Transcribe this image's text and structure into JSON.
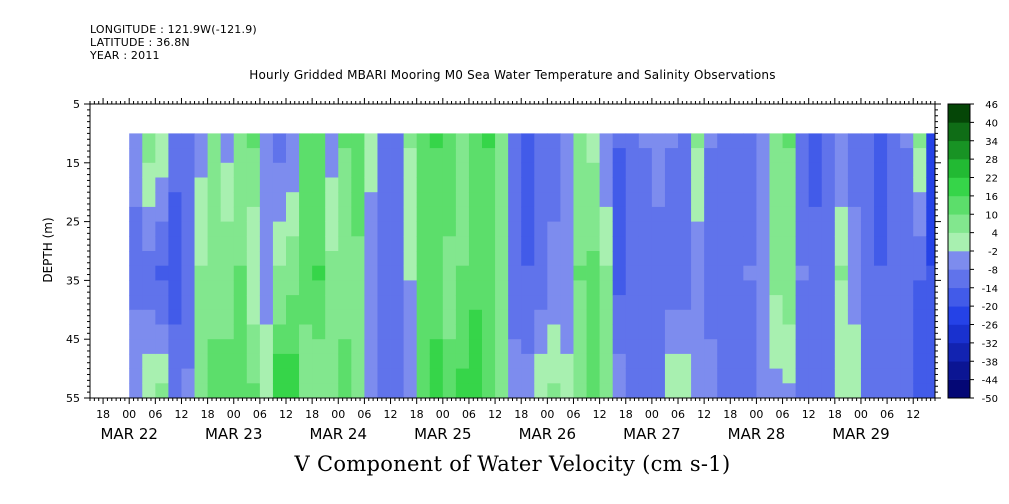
{
  "header": {
    "longitude": "LONGITUDE : 121.9W(-121.9)",
    "latitude": "LATITUDE : 36.8N",
    "year": "YEAR : 2011"
  },
  "chart_data": {
    "type": "heatmap",
    "title": "Hourly Gridded MBARI Mooring M0 Sea Water Temperature and Salinity Observations",
    "xlabel": "V Component of Water Velocity (cm s-1)",
    "ylabel": "DEPTH (m)",
    "x_range_hours": [
      "MAR 21 15:00",
      "MAR 29 17:00"
    ],
    "data_time_range": [
      "MAR 22 00:00",
      "MAR 29 16:00"
    ],
    "depth_range": [
      5,
      55
    ],
    "data_depth_range": [
      10,
      55
    ],
    "y_ticks": [
      "5",
      "15",
      "25",
      "35",
      "45",
      "55"
    ],
    "hour_tick_labels": [
      "18",
      "00",
      "06",
      "12",
      "18",
      "00",
      "06",
      "12",
      "18",
      "00",
      "06",
      "12",
      "18",
      "00",
      "06",
      "12",
      "18",
      "00",
      "06",
      "12",
      "18",
      "00",
      "06",
      "12",
      "18",
      "00",
      "06",
      "12",
      "18",
      "00",
      "06",
      "12"
    ],
    "date_labels": [
      "MAR 22",
      "MAR 23",
      "MAR 24",
      "MAR 25",
      "MAR 26",
      "MAR 27",
      "MAR 28",
      "MAR 29"
    ],
    "colorbar": {
      "levels": [
        -50,
        -44,
        -38,
        -32,
        -26,
        -20,
        -14,
        -8,
        -2,
        4,
        10,
        16,
        22,
        28,
        34,
        40,
        46
      ],
      "labels": [
        "46",
        "40",
        "34",
        "28",
        "22",
        "16",
        "10",
        "4",
        "-2",
        "-8",
        "-14",
        "-20",
        "-26",
        "-32",
        "-38",
        "-44",
        "-50"
      ],
      "color_min": "#000066",
      "color_mid_neg": "#9aa4f0",
      "color_mid_pos": "#a8f0b0",
      "color_max": "#003300"
    },
    "bands": [
      {
        "time": "MAR 22 00:00",
        "surface": -6,
        "mid": -10,
        "bottom": -4
      },
      {
        "time": "MAR 22 03:00",
        "surface": 6,
        "mid": -12,
        "bottom": 4
      },
      {
        "time": "MAR 22 06:00",
        "surface": 2,
        "mid": -16,
        "bottom": 8
      },
      {
        "time": "MAR 22 09:00",
        "surface": -12,
        "mid": -18,
        "bottom": -8
      },
      {
        "time": "MAR 22 12:00",
        "surface": -10,
        "mid": -14,
        "bottom": -6
      },
      {
        "time": "MAR 22 15:00",
        "surface": -4,
        "mid": 4,
        "bottom": 8
      },
      {
        "time": "MAR 22 18:00",
        "surface": 6,
        "mid": 6,
        "bottom": 14
      },
      {
        "time": "MAR 22 21:00",
        "surface": -4,
        "mid": 8,
        "bottom": 12
      },
      {
        "time": "MAR 23 00:00",
        "surface": 8,
        "mid": 10,
        "bottom": 16
      },
      {
        "time": "MAR 23 03:00",
        "surface": 10,
        "mid": -2,
        "bottom": 12
      },
      {
        "time": "MAR 23 06:00",
        "surface": -6,
        "mid": -4,
        "bottom": 2
      },
      {
        "time": "MAR 23 09:00",
        "surface": -10,
        "mid": 4,
        "bottom": 22
      },
      {
        "time": "MAR 23 12:00",
        "surface": -8,
        "mid": 8,
        "bottom": 20
      },
      {
        "time": "MAR 23 15:00",
        "surface": 12,
        "mid": 12,
        "bottom": 6
      },
      {
        "time": "MAR 23 18:00",
        "surface": 14,
        "mid": 16,
        "bottom": 4
      },
      {
        "time": "MAR 23 21:00",
        "surface": -6,
        "mid": 6,
        "bottom": 10
      },
      {
        "time": "MAR 24 00:00",
        "surface": 10,
        "mid": 8,
        "bottom": 12
      },
      {
        "time": "MAR 24 03:00",
        "surface": 14,
        "mid": 8,
        "bottom": 4
      },
      {
        "time": "MAR 24 06:00",
        "surface": 2,
        "mid": -8,
        "bottom": -6
      },
      {
        "time": "MAR 24 09:00",
        "surface": -14,
        "mid": -12,
        "bottom": -10
      },
      {
        "time": "MAR 24 12:00",
        "surface": -12,
        "mid": -14,
        "bottom": -12
      },
      {
        "time": "MAR 24 15:00",
        "surface": 4,
        "mid": -2,
        "bottom": -8
      },
      {
        "time": "MAR 24 18:00",
        "surface": 10,
        "mid": 12,
        "bottom": 10
      },
      {
        "time": "MAR 24 21:00",
        "surface": 16,
        "mid": 14,
        "bottom": 18
      },
      {
        "time": "MAR 25 00:00",
        "surface": 14,
        "mid": 8,
        "bottom": 12
      },
      {
        "time": "MAR 25 03:00",
        "surface": 8,
        "mid": 10,
        "bottom": 18
      },
      {
        "time": "MAR 25 06:00",
        "surface": 12,
        "mid": 14,
        "bottom": 22
      },
      {
        "time": "MAR 25 09:00",
        "surface": 16,
        "mid": 12,
        "bottom": 14
      },
      {
        "time": "MAR 25 12:00",
        "surface": 6,
        "mid": 4,
        "bottom": 8
      },
      {
        "time": "MAR 25 15:00",
        "surface": -10,
        "mid": -10,
        "bottom": -6
      },
      {
        "time": "MAR 25 18:00",
        "surface": -16,
        "mid": -14,
        "bottom": -4
      },
      {
        "time": "MAR 25 21:00",
        "surface": -14,
        "mid": -12,
        "bottom": 4
      },
      {
        "time": "MAR 26 00:00",
        "surface": -12,
        "mid": -6,
        "bottom": 6
      },
      {
        "time": "MAR 26 03:00",
        "surface": -8,
        "mid": -8,
        "bottom": 2
      },
      {
        "time": "MAR 26 06:00",
        "surface": 4,
        "mid": 10,
        "bottom": 4
      },
      {
        "time": "MAR 26 09:00",
        "surface": 2,
        "mid": 12,
        "bottom": 10
      },
      {
        "time": "MAR 26 12:00",
        "surface": -8,
        "mid": 4,
        "bottom": 8
      },
      {
        "time": "MAR 26 15:00",
        "surface": -14,
        "mid": -16,
        "bottom": -4
      },
      {
        "time": "MAR 26 18:00",
        "surface": -10,
        "mid": -14,
        "bottom": -12
      },
      {
        "time": "MAR 26 21:00",
        "surface": -8,
        "mid": -12,
        "bottom": -14
      },
      {
        "time": "MAR 27 00:00",
        "surface": -6,
        "mid": -10,
        "bottom": -8
      },
      {
        "time": "MAR 27 03:00",
        "surface": -8,
        "mid": -12,
        "bottom": 4
      },
      {
        "time": "MAR 27 06:00",
        "surface": -12,
        "mid": -14,
        "bottom": 6
      },
      {
        "time": "MAR 27 09:00",
        "surface": 4,
        "mid": -6,
        "bottom": -2
      },
      {
        "time": "MAR 27 12:00",
        "surface": -8,
        "mid": -10,
        "bottom": -6
      },
      {
        "time": "MAR 27 15:00",
        "surface": -12,
        "mid": -14,
        "bottom": -12
      },
      {
        "time": "MAR 27 18:00",
        "surface": -14,
        "mid": -10,
        "bottom": -8
      },
      {
        "time": "MAR 27 21:00",
        "surface": -10,
        "mid": -8,
        "bottom": -10
      },
      {
        "time": "MAR 28 00:00",
        "surface": -6,
        "mid": -6,
        "bottom": -4
      },
      {
        "time": "MAR 28 03:00",
        "surface": 8,
        "mid": 6,
        "bottom": -6
      },
      {
        "time": "MAR 28 06:00",
        "surface": 10,
        "mid": 8,
        "bottom": -4
      },
      {
        "time": "MAR 28 09:00",
        "surface": -12,
        "mid": -8,
        "bottom": -10
      },
      {
        "time": "MAR 28 12:00",
        "surface": -16,
        "mid": -12,
        "bottom": -14
      },
      {
        "time": "MAR 28 15:00",
        "surface": -12,
        "mid": -10,
        "bottom": -8
      },
      {
        "time": "MAR 28 18:00",
        "surface": -8,
        "mid": 4,
        "bottom": 2
      },
      {
        "time": "MAR 28 21:00",
        "surface": -10,
        "mid": -6,
        "bottom": 4
      },
      {
        "time": "MAR 29 00:00",
        "surface": -14,
        "mid": -12,
        "bottom": -8
      },
      {
        "time": "MAR 29 03:00",
        "surface": -16,
        "mid": -14,
        "bottom": -10
      },
      {
        "time": "MAR 29 06:00",
        "surface": -12,
        "mid": -12,
        "bottom": -8
      },
      {
        "time": "MAR 29 09:00",
        "surface": -8,
        "mid": -14,
        "bottom": -12
      },
      {
        "time": "MAR 29 12:00",
        "surface": 4,
        "mid": -14,
        "bottom": -16
      },
      {
        "time": "MAR 29 15:00",
        "surface": -24,
        "mid": -20,
        "bottom": -18
      }
    ]
  }
}
